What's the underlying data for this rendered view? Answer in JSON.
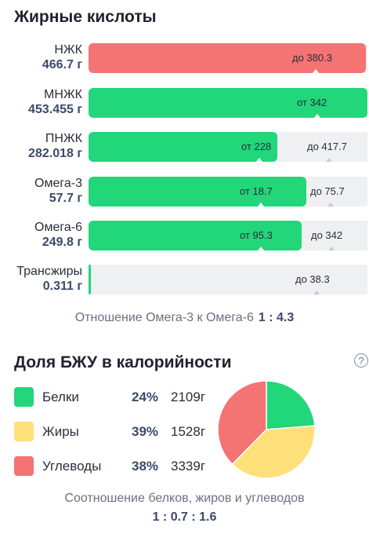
{
  "fatty_acids": {
    "title": "Жирные кислоты",
    "rows": [
      {
        "name": "НЖК",
        "value": "466.7 г",
        "color": "#f47373",
        "max_text": "до 380.3",
        "min_text": "",
        "fill_fraction": 1.0
      },
      {
        "name": "МНЖК",
        "value": "453.455 г",
        "color": "#22d67a",
        "max_text": "",
        "min_text": "от 342",
        "fill_fraction": 1.0
      },
      {
        "name": "ПНЖК",
        "value": "282.018 г",
        "color": "#22d67a",
        "max_text": "до 417.7",
        "min_text": "от 228",
        "fill_fraction": 0.675
      },
      {
        "name": "Омега-3",
        "value": "57.7 г",
        "color": "#22d67a",
        "max_text": "до 75.7",
        "min_text": "от 18.7",
        "fill_fraction": 0.762
      },
      {
        "name": "Омега-6",
        "value": "249.8 г",
        "color": "#22d67a",
        "max_text": "до 342",
        "min_text": "от 95.3",
        "fill_fraction": 0.73
      },
      {
        "name": "Трансжиры",
        "value": "0.311 г",
        "color": "#22d67a",
        "max_text": "до 38.3",
        "min_text": "",
        "fill_fraction": 0.008
      }
    ],
    "ratio_label": "Отношение Омега-3 к Омега-6",
    "ratio_value": "1 : 4.3"
  },
  "macros": {
    "title": "Доля БЖУ в калорийности",
    "help_icon": "?",
    "items": [
      {
        "name": "Белки",
        "percent": "24%",
        "grams": "2109г",
        "color": "#22d67a",
        "share": 24
      },
      {
        "name": "Жиры",
        "percent": "39%",
        "grams": "1528г",
        "color": "#fde07a",
        "share": 39
      },
      {
        "name": "Углеводы",
        "percent": "38%",
        "grams": "3339г",
        "color": "#f47373",
        "share": 38
      }
    ],
    "ratio_label": "Соотношение белков, жиров и углеводов",
    "ratio_value": "1 : 0.7 : 1.6"
  }
}
